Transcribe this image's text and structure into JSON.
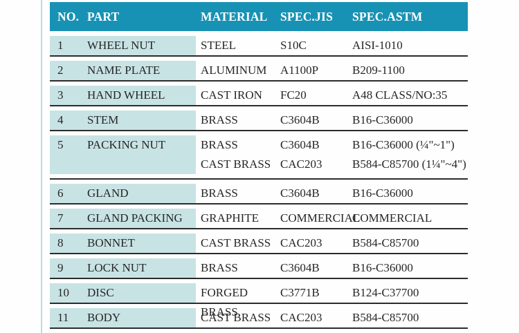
{
  "table": {
    "headers": [
      "NO.",
      "PART",
      "MATERIAL",
      "SPEC.JIS",
      "SPEC.ASTM"
    ],
    "rows": [
      {
        "no": "1",
        "part": "WHEEL NUT",
        "lines": [
          {
            "material": "STEEL",
            "jis": "S10C",
            "astm": "AISI-1010"
          }
        ]
      },
      {
        "no": "2",
        "part": "NAME PLATE",
        "lines": [
          {
            "material": "ALUMINUM",
            "jis": "A1100P",
            "astm": "B209-1100"
          }
        ]
      },
      {
        "no": "3",
        "part": "HAND WHEEL",
        "lines": [
          {
            "material": "CAST IRON",
            "jis": "FC20",
            "astm": "A48 CLASS/NO:35"
          }
        ]
      },
      {
        "no": "4",
        "part": "STEM",
        "lines": [
          {
            "material": "BRASS",
            "jis": "C3604B",
            "astm": "B16-C36000"
          }
        ]
      },
      {
        "no": "5",
        "part": "PACKING NUT",
        "lines": [
          {
            "material": "BRASS",
            "jis": "C3604B",
            "astm": "B16-C36000 (¼\"~1\")"
          },
          {
            "material": "CAST BRASS",
            "jis": "CAC203",
            "astm": "B584-C85700 (1¼\"~4\")"
          }
        ]
      },
      {
        "no": "6",
        "part": "GLAND",
        "lines": [
          {
            "material": "BRASS",
            "jis": "C3604B",
            "astm": "B16-C36000"
          }
        ]
      },
      {
        "no": "7",
        "part": "GLAND PACKING",
        "lines": [
          {
            "material": "GRAPHITE",
            "jis": "COMMERCIAL",
            "astm": "COMMERCIAL"
          }
        ]
      },
      {
        "no": "8",
        "part": "BONNET",
        "lines": [
          {
            "material": "CAST BRASS",
            "jis": "CAC203",
            "astm": "B584-C85700"
          }
        ]
      },
      {
        "no": "9",
        "part": "LOCK NUT",
        "lines": [
          {
            "material": "BRASS",
            "jis": "C3604B",
            "astm": "B16-C36000"
          }
        ]
      },
      {
        "no": "10",
        "part": "DISC",
        "lines": [
          {
            "material": "FORGED BRASS",
            "jis": "C3771B",
            "astm": "B124-C37700"
          }
        ]
      },
      {
        "no": "11",
        "part": "BODY",
        "lines": [
          {
            "material": "CAST BRASS",
            "jis": "CAC203",
            "astm": "B584-C85700"
          }
        ]
      }
    ]
  },
  "colors": {
    "header_bg": "#1892b4",
    "header_text": "#ffffff",
    "row_band_bg": "#c8e3e4",
    "rule": "#2b2b2b",
    "body_text": "#262626"
  }
}
